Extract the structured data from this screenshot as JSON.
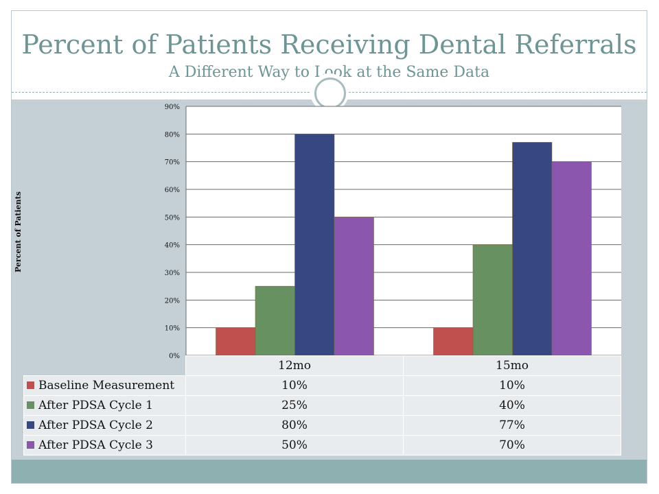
{
  "slide": {
    "title": "Percent of Patients Receiving Dental Referrals",
    "subtitle": "A Different Way to Look at the Same Data"
  },
  "colors": {
    "title": "#6e9595",
    "content_bg": "#c5d0d6",
    "footer_band": "#8fb0b0"
  },
  "chart_data": {
    "type": "bar",
    "title": "",
    "xlabel": "",
    "ylabel": "Percent of Patients",
    "ylim": [
      0,
      90
    ],
    "yticks": [
      "0%",
      "10%",
      "20%",
      "30%",
      "40%",
      "50%",
      "60%",
      "70%",
      "80%",
      "90%"
    ],
    "grid": true,
    "categories": [
      "12mo",
      "15mo"
    ],
    "series": [
      {
        "name": "Baseline Measurement",
        "values": [
          10,
          10
        ],
        "labels": [
          "10%",
          "10%"
        ],
        "color": "#c0504d"
      },
      {
        "name": "After PDSA Cycle 1",
        "values": [
          25,
          40
        ],
        "labels": [
          "25%",
          "40%"
        ],
        "color": "#679160"
      },
      {
        "name": "After PDSA Cycle 2",
        "values": [
          80,
          77
        ],
        "labels": [
          "80%",
          "77%"
        ],
        "color": "#374781"
      },
      {
        "name": "After PDSA Cycle 3",
        "values": [
          50,
          70
        ],
        "labels": [
          "50%",
          "70%"
        ],
        "color": "#8b57ae"
      }
    ]
  }
}
